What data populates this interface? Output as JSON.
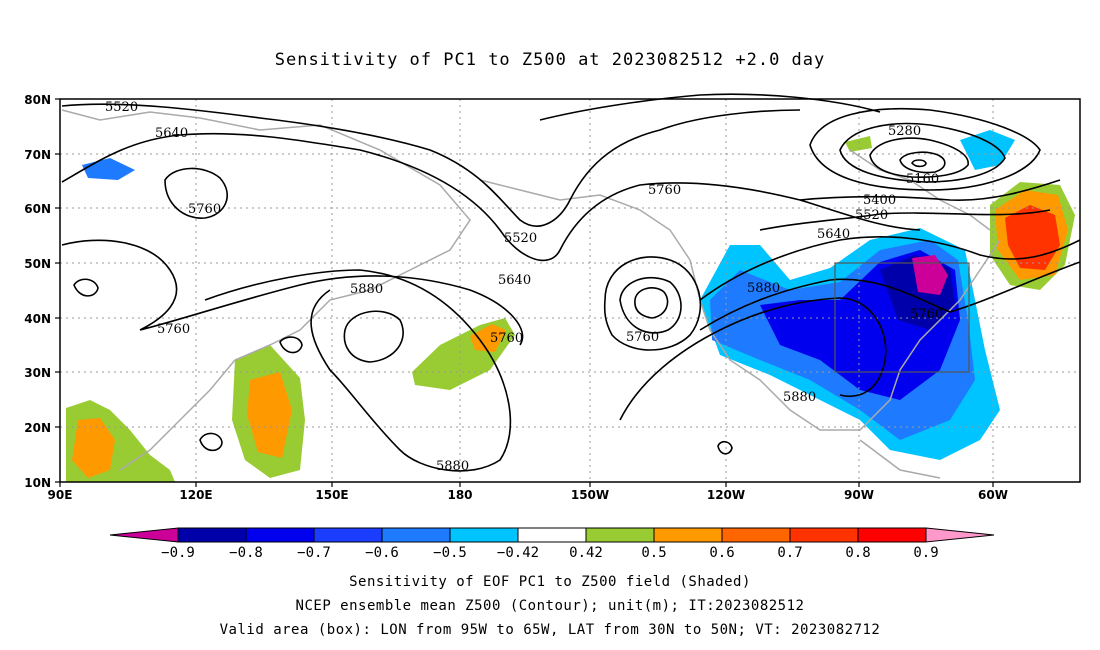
{
  "title": "Sensitivity of PC1 to Z500 at 2023082512 +2.0 day",
  "lat_labels": [
    "80N",
    "70N",
    "60N",
    "50N",
    "40N",
    "30N",
    "20N",
    "10N"
  ],
  "lon_labels": [
    "90E",
    "120E",
    "150E",
    "180",
    "150W",
    "120W",
    "90W",
    "60W"
  ],
  "contour_labels": [
    {
      "text": "5520"
    },
    {
      "text": "5640"
    },
    {
      "text": "5760"
    },
    {
      "text": "5760"
    },
    {
      "text": "5880"
    },
    {
      "text": "5880"
    },
    {
      "text": "5520"
    },
    {
      "text": "5640"
    },
    {
      "text": "5760"
    },
    {
      "text": "5760"
    },
    {
      "text": "5760"
    },
    {
      "text": "5880"
    },
    {
      "text": "5880"
    },
    {
      "text": "5280"
    },
    {
      "text": "5160"
    },
    {
      "text": "5400"
    },
    {
      "text": "5520"
    },
    {
      "text": "5640"
    },
    {
      "text": "5760"
    }
  ],
  "colorbar": {
    "labels": [
      "−0.9",
      "−0.8",
      "−0.7",
      "−0.6",
      "−0.5",
      "−0.42",
      "0.42",
      "0.5",
      "0.6",
      "0.7",
      "0.8",
      "0.9"
    ],
    "colors": [
      "#cc0099",
      "#0000aa",
      "#0000ee",
      "#1a3dff",
      "#1e7bff",
      "#00c4ff",
      "#ffffff",
      "#99cc33",
      "#ff9900",
      "#ff6600",
      "#ff3300",
      "#ff0000",
      "#ff99cc"
    ]
  },
  "footer": [
    "Sensitivity of EOF PC1 to Z500 field (Shaded)",
    "NCEP ensemble mean Z500 (Contour); unit(m); IT:2023082512",
    "Valid area (box): LON from 95W to 65W, LAT from 30N to 50N; VT: 2023082712"
  ]
}
